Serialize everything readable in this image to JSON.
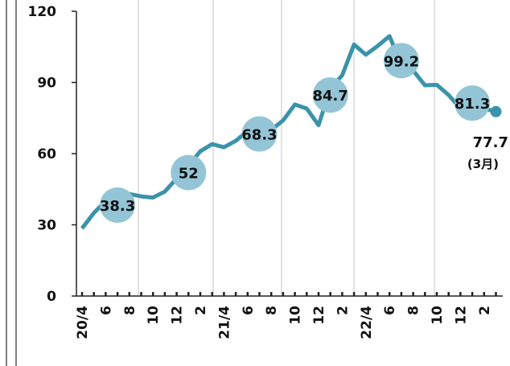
{
  "chart_data": {
    "type": "line",
    "categories": [
      "20/4",
      null,
      "6",
      null,
      "8",
      null,
      "10",
      null,
      "12",
      null,
      "2",
      null,
      "21/4",
      null,
      "6",
      null,
      "8",
      null,
      "10",
      null,
      "12",
      null,
      "2",
      null,
      "22/4",
      null,
      "6",
      null,
      "8",
      null,
      "10",
      null,
      "12",
      null,
      "2",
      null
    ],
    "series": [
      {
        "color": "#3a93aa",
        "values": [
          28.5,
          35,
          40,
          40,
          43,
          42,
          41.5,
          44,
          49.5,
          55,
          61,
          64,
          62.7,
          65.4,
          69.5,
          70.5,
          70,
          74,
          80.7,
          79,
          72,
          87.5,
          93,
          106,
          101.7,
          105.4,
          109.5,
          97.6,
          95,
          88.8,
          89,
          84.7,
          79,
          78,
          79,
          77.7
        ]
      },
      {
        "color": "#93c5d6",
        "values": [
          null,
          null,
          null,
          38.3,
          null,
          null,
          null,
          null,
          null,
          52.0,
          null,
          null,
          null,
          null,
          null,
          68.3,
          null,
          null,
          null,
          null,
          null,
          84.7,
          null,
          null,
          null,
          null,
          null,
          99.2,
          null,
          null,
          null,
          null,
          null,
          81.3,
          null,
          null
        ]
      }
    ],
    "annotation": "(3月)",
    "ylim": [
      0,
      120
    ],
    "yticks": [
      0,
      30,
      60,
      90,
      120
    ],
    "grid": false
  }
}
